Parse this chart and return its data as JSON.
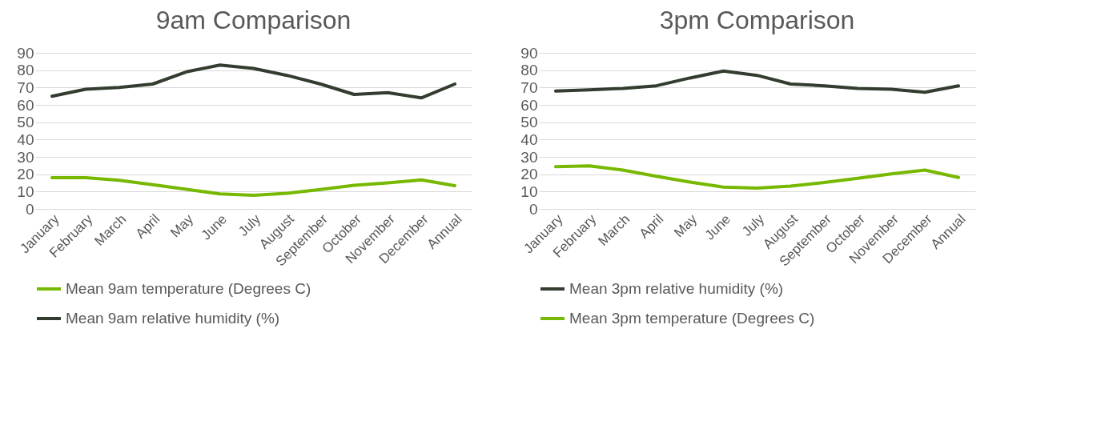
{
  "chart_data": [
    {
      "type": "line",
      "title": "9am Comparison",
      "categories": [
        "January",
        "February",
        "March",
        "April",
        "May",
        "June",
        "July",
        "August",
        "September",
        "October",
        "November",
        "December",
        "Annual"
      ],
      "series": [
        {
          "name": "Mean 9am temperature (Degrees C)",
          "color": "#77b800",
          "values": [
            18,
            18,
            16.5,
            14,
            11.3,
            8.7,
            7.9,
            9,
            11.2,
            13.6,
            15,
            16.7,
            13.4
          ]
        },
        {
          "name": "Mean 9am relative humidity (%)",
          "color": "#323d2f",
          "values": [
            65,
            69,
            70,
            72,
            79,
            83,
            81,
            77,
            72,
            66,
            67,
            64,
            72
          ]
        }
      ],
      "ylim": [
        0,
        90
      ],
      "yticks": [
        0,
        10,
        20,
        30,
        40,
        50,
        60,
        70,
        80,
        90
      ],
      "grid": "y",
      "legend": "bottom",
      "line_style": "solid",
      "marker": "none"
    },
    {
      "type": "line",
      "title": "3pm Comparison",
      "categories": [
        "January",
        "February",
        "March",
        "April",
        "May",
        "June",
        "July",
        "August",
        "September",
        "October",
        "November",
        "December",
        "Annual"
      ],
      "series": [
        {
          "name": "Mean 3pm relative humidity (%)",
          "color": "#323d2f",
          "values": [
            68,
            68.7,
            69.5,
            71,
            75.5,
            79.5,
            77,
            72,
            71,
            69.5,
            69,
            67.3,
            71
          ]
        },
        {
          "name": "Mean 3pm temperature (Degrees C)",
          "color": "#77b800",
          "values": [
            24.4,
            24.8,
            22.4,
            18.8,
            15.5,
            12.6,
            12,
            13.2,
            15.2,
            17.7,
            20.2,
            22.4,
            18.1
          ]
        }
      ],
      "ylim": [
        0,
        90
      ],
      "yticks": [
        0,
        10,
        20,
        30,
        40,
        50,
        60,
        70,
        80,
        90
      ],
      "grid": "y",
      "legend": "bottom",
      "line_style": "solid",
      "marker": "none"
    }
  ]
}
